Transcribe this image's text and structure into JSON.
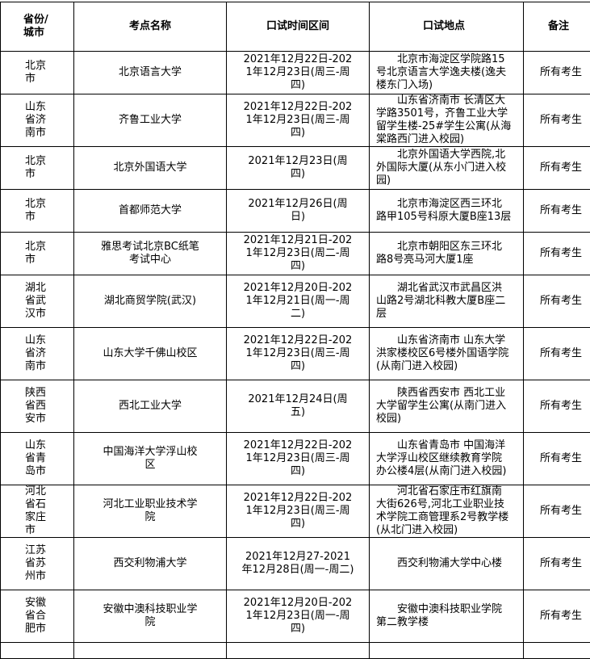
{
  "headers": [
    "省份/城市",
    "考点名称",
    "口试时间区间",
    "口试地点",
    "备注"
  ],
  "rows": [
    {
      "city": "北京市",
      "site": "北京语言大学",
      "time": "2021年12月22日-2021年12月23日(周三-周四)",
      "address": "北京市海淀区学院路15号北京语言大学逸夫楼(逸夫楼东门入场)",
      "note": "所有考生"
    },
    {
      "city": "山东省济南市",
      "site": "齐鲁工业大学",
      "time": "2021年12月22日-2021年12月23日(周三-周四)",
      "address": "山东省济南市 长清区大学路3501号，齐鲁工业大学留学生楼-25#学生公寓(从海棠路西门进入校园)",
      "note": "所有考生"
    },
    {
      "city": "北京市",
      "site": "北京外国语大学",
      "time": "2021年12月23日(周四)",
      "address": "北京外国语大学西院,北外国际大厦(从东小门进入校园)",
      "note": "所有考生"
    },
    {
      "city": "北京市",
      "site": "首都师范大学",
      "time": "2021年12月26日(周日)",
      "address": "北京市海淀区西三环北路甲105号科原大厦B座13层",
      "note": "所有考生"
    },
    {
      "city": "北京市",
      "site": "雅思考试北京BC纸笔考试中心",
      "time": "2021年12月21日-2021年12月23日(周二-周四)",
      "address": "北京市朝阳区东三环北路8号亮马河大厦1座",
      "note": "所有考生"
    },
    {
      "city": "湖北省武汉市",
      "site": "湖北商贸学院(武汉)",
      "time": "2021年12月20日-2021年12月21日(周一-周二)",
      "address": "湖北省武汉市武昌区洪山路2号湖北科教大厦B座二层",
      "note": "所有考生"
    },
    {
      "city": "山东省济南市",
      "site": "山东大学千佛山校区",
      "time": "2021年12月22日-2021年12月23日(周三-周四)",
      "address": "山东省济南市 山东大学洪家楼校区6号楼外国语学院(从南门进入校园)",
      "note": "所有考生"
    },
    {
      "city": "陕西省西安市",
      "site": "西北工业大学",
      "time": "2021年12月24日(周五)",
      "address": "陕西省西安市 西北工业大学留学生公寓(从南门进入校园)",
      "note": "所有考生"
    },
    {
      "city": "山东省青岛市",
      "site": "中国海洋大学浮山校区",
      "time": "2021年12月22日-2021年12月23日(周三-周四)",
      "address": "山东省青岛市 中国海洋大学浮山校区继续教育学院办公楼4层(从南门进入校园)",
      "note": "所有考生"
    },
    {
      "city": "河北省石家庄市",
      "site": "河北工业职业技术学院",
      "time": "2021年12月22日-2021年12月23日(周三-周四)",
      "address": "河北省石家庄市红旗南大街626号,河北工业职业技术学院工商管理系2号教学楼(从北门进入校园)",
      "note": "所有考生"
    },
    {
      "city": "江苏省苏州市",
      "site": "西交利物浦大学",
      "time": "2021年12月27-2021年12月28日(周一-周二)",
      "address": "西交利物浦大学中心楼",
      "note": "所有考生"
    },
    {
      "city": "安徽省合肥市",
      "site": "安徽中澳科技职业学院",
      "time": "2021年12月20日-2021年12月23日(周一-周四)",
      "address": "安徽中澳科技职业学院第二教学楼",
      "note": "所有考生"
    }
  ]
}
